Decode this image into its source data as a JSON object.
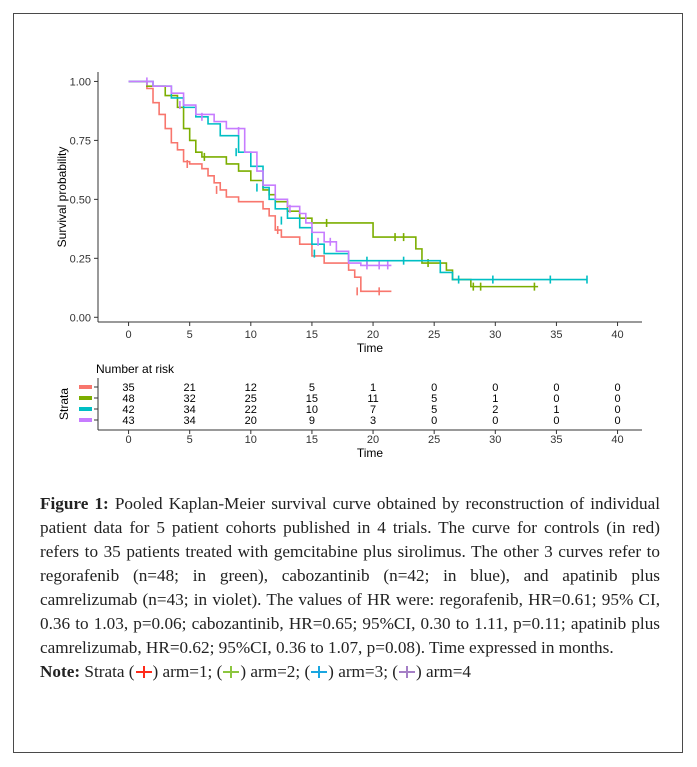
{
  "chart_data": {
    "type": "line",
    "subtype": "kaplan-meier",
    "xlabel": "Time",
    "ylabel": "Survival probability",
    "xlim": [
      -2.5,
      42
    ],
    "ylim": [
      -0.02,
      1.04
    ],
    "x_ticks": [
      "0",
      "5",
      "10",
      "15",
      "20",
      "25",
      "30",
      "35",
      "40"
    ],
    "y_ticks": [
      "0.00",
      "0.25",
      "0.50",
      "0.75",
      "1.00"
    ],
    "grid": false,
    "series": [
      {
        "color": "#f8766d",
        "steps": [
          [
            0,
            1.0
          ],
          [
            1.5,
            0.97
          ],
          [
            2,
            0.91
          ],
          [
            2.5,
            0.86
          ],
          [
            3,
            0.8
          ],
          [
            3.5,
            0.74
          ],
          [
            4,
            0.71
          ],
          [
            4.5,
            0.66
          ],
          [
            5,
            0.65
          ],
          [
            6,
            0.63
          ],
          [
            6.5,
            0.6
          ],
          [
            7,
            0.57
          ],
          [
            7.5,
            0.54
          ],
          [
            8,
            0.51
          ],
          [
            9,
            0.49
          ],
          [
            11,
            0.46
          ],
          [
            11.5,
            0.43
          ],
          [
            12,
            0.37
          ],
          [
            12.5,
            0.34
          ],
          [
            14,
            0.31
          ],
          [
            15,
            0.26
          ],
          [
            16,
            0.23
          ],
          [
            18,
            0.2
          ],
          [
            18.5,
            0.17
          ],
          [
            19,
            0.11
          ],
          [
            21.5,
            0.11
          ]
        ],
        "censors": [
          [
            4.8,
            0.65
          ],
          [
            7.2,
            0.54
          ],
          [
            12.2,
            0.37
          ],
          [
            18.7,
            0.11
          ],
          [
            20.5,
            0.11
          ]
        ]
      },
      {
        "color": "#7cae00",
        "steps": [
          [
            0,
            1.0
          ],
          [
            1.5,
            0.98
          ],
          [
            3,
            0.94
          ],
          [
            4,
            0.89
          ],
          [
            4.5,
            0.8
          ],
          [
            5,
            0.75
          ],
          [
            5.5,
            0.7
          ],
          [
            6,
            0.68
          ],
          [
            8,
            0.65
          ],
          [
            9,
            0.62
          ],
          [
            10,
            0.58
          ],
          [
            11,
            0.54
          ],
          [
            11.5,
            0.52
          ],
          [
            12,
            0.49
          ],
          [
            13,
            0.45
          ],
          [
            14,
            0.42
          ],
          [
            15,
            0.4
          ],
          [
            18,
            0.4
          ],
          [
            20,
            0.34
          ],
          [
            23.5,
            0.29
          ],
          [
            24,
            0.23
          ],
          [
            26,
            0.2
          ],
          [
            26.5,
            0.16
          ],
          [
            28,
            0.13
          ],
          [
            33.5,
            0.13
          ]
        ],
        "censors": [
          [
            6.2,
            0.68
          ],
          [
            16.2,
            0.4
          ],
          [
            21.8,
            0.34
          ],
          [
            22.5,
            0.34
          ],
          [
            24.5,
            0.23
          ],
          [
            28.2,
            0.13
          ],
          [
            28.8,
            0.13
          ],
          [
            33.2,
            0.13
          ]
        ]
      },
      {
        "color": "#00bfc4",
        "steps": [
          [
            0,
            1.0
          ],
          [
            2,
            0.98
          ],
          [
            3.5,
            0.93
          ],
          [
            4.5,
            0.89
          ],
          [
            5.5,
            0.85
          ],
          [
            6.5,
            0.82
          ],
          [
            7.5,
            0.77
          ],
          [
            9,
            0.7
          ],
          [
            10,
            0.64
          ],
          [
            11,
            0.55
          ],
          [
            11.5,
            0.5
          ],
          [
            12,
            0.46
          ],
          [
            13,
            0.42
          ],
          [
            14,
            0.38
          ],
          [
            15,
            0.31
          ],
          [
            16,
            0.27
          ],
          [
            18,
            0.24
          ],
          [
            24.5,
            0.24
          ],
          [
            25.5,
            0.19
          ],
          [
            26.5,
            0.16
          ],
          [
            37.5,
            0.16
          ]
        ],
        "censors": [
          [
            5.5,
            0.88
          ],
          [
            8.8,
            0.7
          ],
          [
            10.5,
            0.55
          ],
          [
            12.5,
            0.41
          ],
          [
            15.2,
            0.27
          ],
          [
            19.5,
            0.24
          ],
          [
            22.5,
            0.24
          ],
          [
            27,
            0.16
          ],
          [
            29.8,
            0.16
          ],
          [
            34.5,
            0.16
          ],
          [
            37.5,
            0.16
          ]
        ]
      },
      {
        "color": "#c77cff",
        "steps": [
          [
            0,
            1.0
          ],
          [
            2,
            0.98
          ],
          [
            3.5,
            0.95
          ],
          [
            4.5,
            0.9
          ],
          [
            5.5,
            0.86
          ],
          [
            7,
            0.83
          ],
          [
            8,
            0.8
          ],
          [
            9.5,
            0.7
          ],
          [
            10.5,
            0.62
          ],
          [
            11,
            0.56
          ],
          [
            12,
            0.5
          ],
          [
            13,
            0.47
          ],
          [
            14,
            0.44
          ],
          [
            14.5,
            0.4
          ],
          [
            15,
            0.36
          ],
          [
            16,
            0.32
          ],
          [
            17,
            0.28
          ],
          [
            18,
            0.23
          ],
          [
            19,
            0.22
          ],
          [
            21.5,
            0.22
          ]
        ],
        "censors": [
          [
            1.5,
            1.0
          ],
          [
            4.2,
            0.9
          ],
          [
            6,
            0.85
          ],
          [
            9,
            0.79
          ],
          [
            13.2,
            0.46
          ],
          [
            15.5,
            0.32
          ],
          [
            16.5,
            0.32
          ],
          [
            19.5,
            0.22
          ],
          [
            20.5,
            0.22
          ],
          [
            21.2,
            0.22
          ]
        ]
      }
    ],
    "risk_table": {
      "title": "Number at risk",
      "ylabel": "Strata",
      "x_ticks": [
        "0",
        "5",
        "10",
        "15",
        "20",
        "25",
        "30",
        "35",
        "40"
      ],
      "xlabel": "Time",
      "rows": [
        {
          "color": "#f8766d",
          "counts": [
            "35",
            "21",
            "12",
            "5",
            "1",
            "0",
            "0",
            "0",
            "0"
          ]
        },
        {
          "color": "#7cae00",
          "counts": [
            "48",
            "32",
            "25",
            "15",
            "11",
            "5",
            "1",
            "0",
            "0"
          ]
        },
        {
          "color": "#00bfc4",
          "counts": [
            "42",
            "34",
            "22",
            "10",
            "7",
            "5",
            "2",
            "1",
            "0"
          ]
        },
        {
          "color": "#c77cff",
          "counts": [
            "43",
            "34",
            "20",
            "9",
            "3",
            "0",
            "0",
            "0",
            "0"
          ]
        }
      ]
    }
  },
  "caption": {
    "label": "Figure 1:",
    "text": " Pooled Kaplan-Meier survival curve obtained by reconstruction of individual patient data for 5 patient cohorts published in 4 trials. The curve for controls (in red) refers to 35 patients treated with gemcitabine plus sirolimus. The other 3 curves refer to regorafenib (n=48; in green), cabozantinib (n=42; in blue), and apatinib plus camrelizumab (n=43; in violet). The values of HR were: regorafenib, HR=0.61; 95% CI, 0.36 to 1.03, p=0.06; cabozantinib, HR=0.65; 95%CI, 0.30 to 1.11, p=0.11; apatinib plus camrelizumab, HR=0.62; 95%CI, 0.36 to 1.07, p=0.08). Time expressed in months.",
    "note_label": "Note:",
    "note_prefix": " Strata (",
    "note_items": [
      {
        "color": "#ff2a1a",
        "text": ") arm=1; ("
      },
      {
        "color": "#8cc63f",
        "text": ") arm=2; ("
      },
      {
        "color": "#1aa6e0",
        "text": ") arm=3; ("
      },
      {
        "color": "#a57fc6",
        "text": ") arm=4"
      }
    ]
  }
}
